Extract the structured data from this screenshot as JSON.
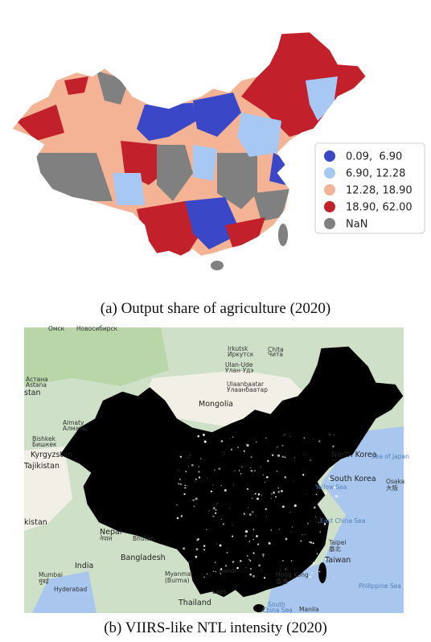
{
  "legend": {
    "entries": [
      {
        "label": "0.09,  6.90",
        "color": "#3a48c8"
      },
      {
        "label": "6.90, 12.28",
        "color": "#a8c8f4"
      },
      {
        "label": "12.28, 18.90",
        "color": "#f3b394"
      },
      {
        "label": "18.90, 62.00",
        "color": "#c2212c"
      },
      {
        "label": "NaN",
        "color": "#808080"
      }
    ]
  },
  "captions": [
    "(a) Output share of agriculture (2020)",
    "(b) VIIRS-like NTL intensity (2020)"
  ],
  "map_labels": [
    "Омск",
    "Новосибирск",
    "Irkutsk",
    "Иркутск",
    "Chita",
    "Чита",
    "Ulan-Ude",
    "Улан-Удэ",
    "Астана",
    "Astana",
    "stan",
    "Ulaanbaatar",
    "Улаанбаатар",
    "Mongolia",
    "Almaty",
    "Алматы",
    "Bishkek",
    "Бишкек",
    "Kyrgyzstan",
    "Tajikistan",
    "North Korea",
    "Sea of Japan",
    "South Korea",
    "Yellow Sea",
    "Osaka",
    "大阪",
    "kistan",
    "East China Sea",
    "Nepal",
    "नेपाल",
    "Bhutan",
    "Taipei",
    "臺北",
    "Taiwan",
    "Bangladesh",
    "India",
    "Myanmar",
    "(Burma)",
    "Hanoi",
    "Hong Kong",
    "香港",
    "Mumbai",
    "मुंबई",
    "Hyderabad",
    "Laos",
    "Philippine Sea",
    "Thailand",
    "South",
    "China Sea",
    "Manila"
  ]
}
